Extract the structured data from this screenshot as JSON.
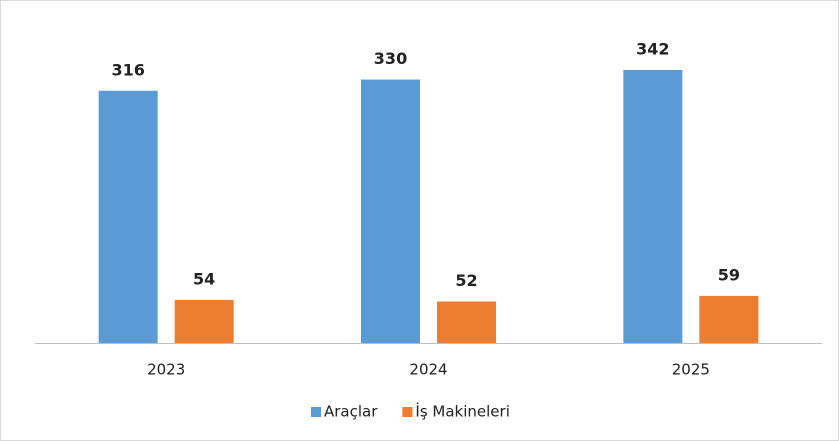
{
  "chart_data": {
    "type": "bar",
    "categories": [
      "2023",
      "2024",
      "2025"
    ],
    "series": [
      {
        "name": "Araçlar",
        "color": "#5b9bd5",
        "values": [
          316,
          330,
          342
        ]
      },
      {
        "name": "İş Makineleri",
        "color": "#ed7d31",
        "values": [
          54,
          52,
          59
        ]
      }
    ],
    "legend": "bottom"
  }
}
